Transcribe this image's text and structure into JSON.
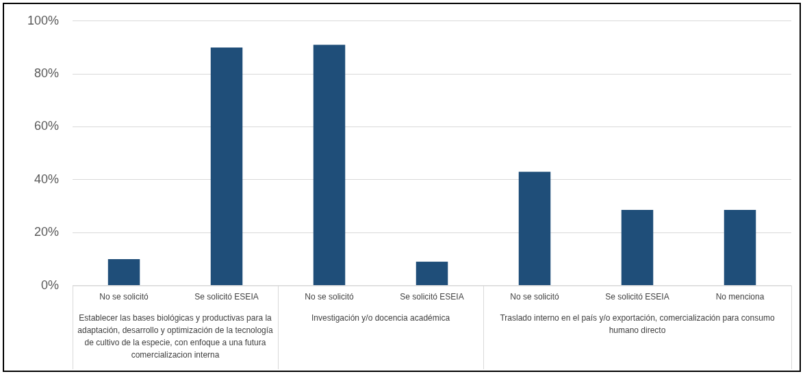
{
  "chart_data": {
    "type": "bar",
    "categories": [
      "No se solicitó",
      "Se solicitó ESEIA",
      "No se solicitó",
      "Se solicitó ESEIA",
      "No se solicitó",
      "Se solicitó ESEIA",
      "No menciona"
    ],
    "values": [
      10,
      90,
      91,
      9,
      43,
      28.6,
      28.6
    ],
    "color": "#1f4e79",
    "ylim": [
      0,
      100
    ],
    "yticks": [
      {
        "value": 0,
        "label": "0%"
      },
      {
        "value": 20,
        "label": "20%"
      },
      {
        "value": 40,
        "label": "40%"
      },
      {
        "value": 60,
        "label": "60%"
      },
      {
        "value": 80,
        "label": "80%"
      },
      {
        "value": 100,
        "label": "100%"
      }
    ],
    "grid": "y",
    "legend": false,
    "annotations": [
      "Establecer las bases biológicas y productivas para la adaptación, desarrollo y optimización de la tecnología de cultivo de la especie, con enfoque a una futura comercializacion interna",
      "Investigación y/o docencia académica",
      "Traslado interno en el país y/o exportación, comercialización para consumo humano directo"
    ]
  }
}
